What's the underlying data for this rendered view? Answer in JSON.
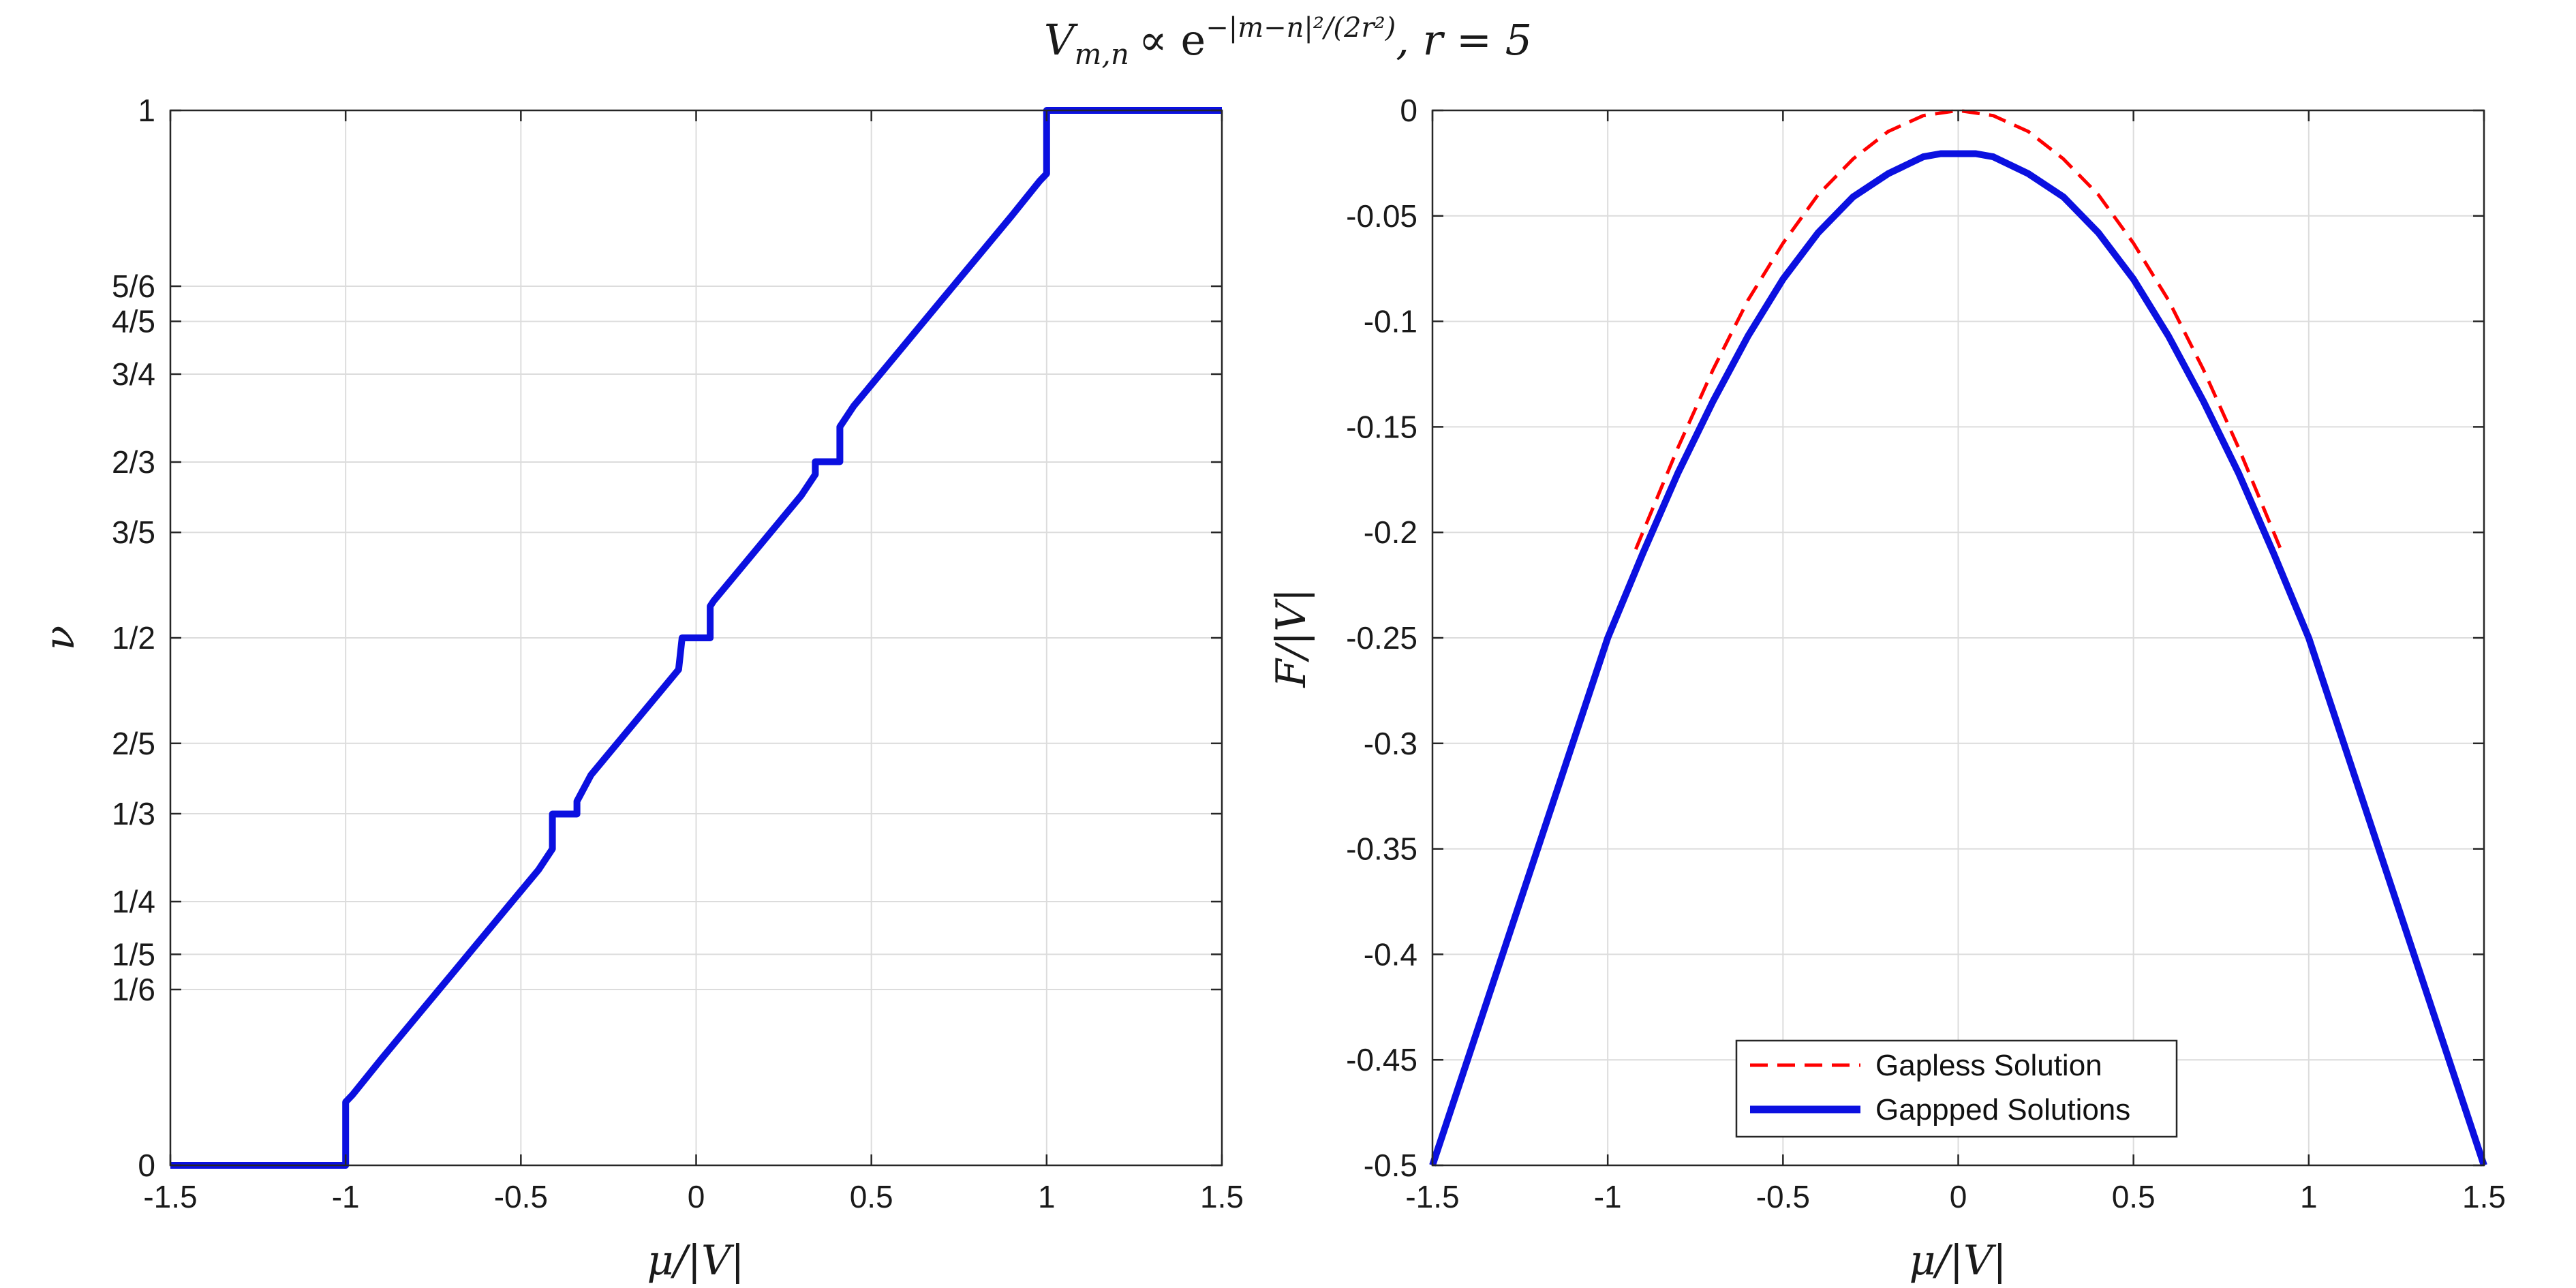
{
  "figure": {
    "title": {
      "lhs": "V",
      "lhs_sub": "m,n",
      "prop": "∝ e",
      "exponent": "−|m−n|²/(2r²)",
      "rhs": ",   r = 5"
    }
  },
  "chart_data": [
    {
      "type": "line",
      "name": "left",
      "xlabel": "μ/|V|",
      "ylabel": "ν",
      "xlim": [
        -1.5,
        1.5
      ],
      "ylim": [
        0,
        1
      ],
      "grid": true,
      "xticks": [
        -1.5,
        -1,
        -0.5,
        0,
        0.5,
        1,
        1.5
      ],
      "xtick_labels": [
        "-1.5",
        "-1",
        "-0.5",
        "0",
        "0.5",
        "1",
        "1.5"
      ],
      "yticks": [
        0,
        0.16667,
        0.2,
        0.25,
        0.33333,
        0.4,
        0.5,
        0.6,
        0.66667,
        0.75,
        0.8,
        0.83333,
        1
      ],
      "ytick_labels": [
        "0",
        "1/6",
        "1/5",
        "1/4",
        "1/3",
        "2/5",
        "1/2",
        "3/5",
        "2/3",
        "3/4",
        "4/5",
        "5/6",
        "1"
      ],
      "series": [
        {
          "color": "#0b10e0",
          "style": "solid",
          "x": [
            -1.5,
            -1.0,
            -1.0,
            -0.98,
            -0.9,
            -0.8,
            -0.7,
            -0.6,
            -0.5,
            -0.45,
            -0.41,
            -0.41,
            -0.38,
            -0.34,
            -0.34,
            -0.3,
            -0.2,
            -0.1,
            -0.05,
            -0.04,
            -0.04,
            0.04,
            0.04,
            0.05,
            0.1,
            0.2,
            0.3,
            0.34,
            0.34,
            0.38,
            0.41,
            0.41,
            0.45,
            0.5,
            0.6,
            0.7,
            0.8,
            0.9,
            0.98,
            1.0,
            1.0,
            1.5
          ],
          "y": [
            0,
            0,
            0.06,
            0.067,
            0.1,
            0.14,
            0.18,
            0.22,
            0.26,
            0.28,
            0.3,
            0.333,
            0.333,
            0.333,
            0.345,
            0.37,
            0.41,
            0.45,
            0.47,
            0.5,
            0.5,
            0.5,
            0.53,
            0.535,
            0.555,
            0.595,
            0.635,
            0.655,
            0.667,
            0.667,
            0.667,
            0.7,
            0.72,
            0.74,
            0.78,
            0.82,
            0.86,
            0.9,
            0.933,
            0.94,
            1,
            1
          ]
        }
      ]
    },
    {
      "type": "line",
      "name": "right",
      "xlabel": "μ/|V|",
      "ylabel": "F/|V|",
      "xlim": [
        -1.5,
        1.5
      ],
      "ylim": [
        -0.5,
        0
      ],
      "grid": true,
      "xticks": [
        -1.5,
        -1,
        -0.5,
        0,
        0.5,
        1,
        1.5
      ],
      "xtick_labels": [
        "-1.5",
        "-1",
        "-0.5",
        "0",
        "0.5",
        "1",
        "1.5"
      ],
      "yticks": [
        -0.5,
        -0.45,
        -0.4,
        -0.35,
        -0.3,
        -0.25,
        -0.2,
        -0.15,
        -0.1,
        -0.05,
        0
      ],
      "ytick_labels": [
        "-0.5",
        "-0.45",
        "-0.4",
        "-0.35",
        "-0.3",
        "-0.25",
        "-0.2",
        "-0.15",
        "-0.1",
        "-0.05",
        "0"
      ],
      "legend": {
        "position": "bottom-center"
      },
      "series": [
        {
          "name": "Gapless Solution",
          "color": "#ff0000",
          "style": "dashed",
          "x": [
            -0.92,
            -0.8,
            -0.7,
            -0.6,
            -0.5,
            -0.4,
            -0.3,
            -0.2,
            -0.1,
            0,
            0.1,
            0.2,
            0.3,
            0.4,
            0.5,
            0.6,
            0.7,
            0.8,
            0.92
          ],
          "y": [
            -0.208,
            -0.16,
            -0.123,
            -0.09,
            -0.063,
            -0.04,
            -0.023,
            -0.01,
            -0.0025,
            0,
            -0.0025,
            -0.01,
            -0.023,
            -0.04,
            -0.063,
            -0.09,
            -0.123,
            -0.16,
            -0.208
          ]
        },
        {
          "name": "Gappped Solutions",
          "color": "#0b10e0",
          "style": "solid",
          "x": [
            -1.5,
            -1.25,
            -1.0,
            -0.9,
            -0.8,
            -0.7,
            -0.6,
            -0.5,
            -0.4,
            -0.3,
            -0.2,
            -0.1,
            -0.05,
            0,
            0.05,
            0.1,
            0.2,
            0.3,
            0.4,
            0.5,
            0.6,
            0.7,
            0.8,
            0.9,
            1.0,
            1.25,
            1.5
          ],
          "y": [
            -0.5,
            -0.375,
            -0.25,
            -0.21,
            -0.172,
            -0.138,
            -0.107,
            -0.08,
            -0.058,
            -0.041,
            -0.03,
            -0.022,
            -0.0205,
            -0.0205,
            -0.0205,
            -0.022,
            -0.03,
            -0.041,
            -0.058,
            -0.08,
            -0.107,
            -0.138,
            -0.172,
            -0.21,
            -0.25,
            -0.375,
            -0.5
          ]
        }
      ]
    }
  ]
}
